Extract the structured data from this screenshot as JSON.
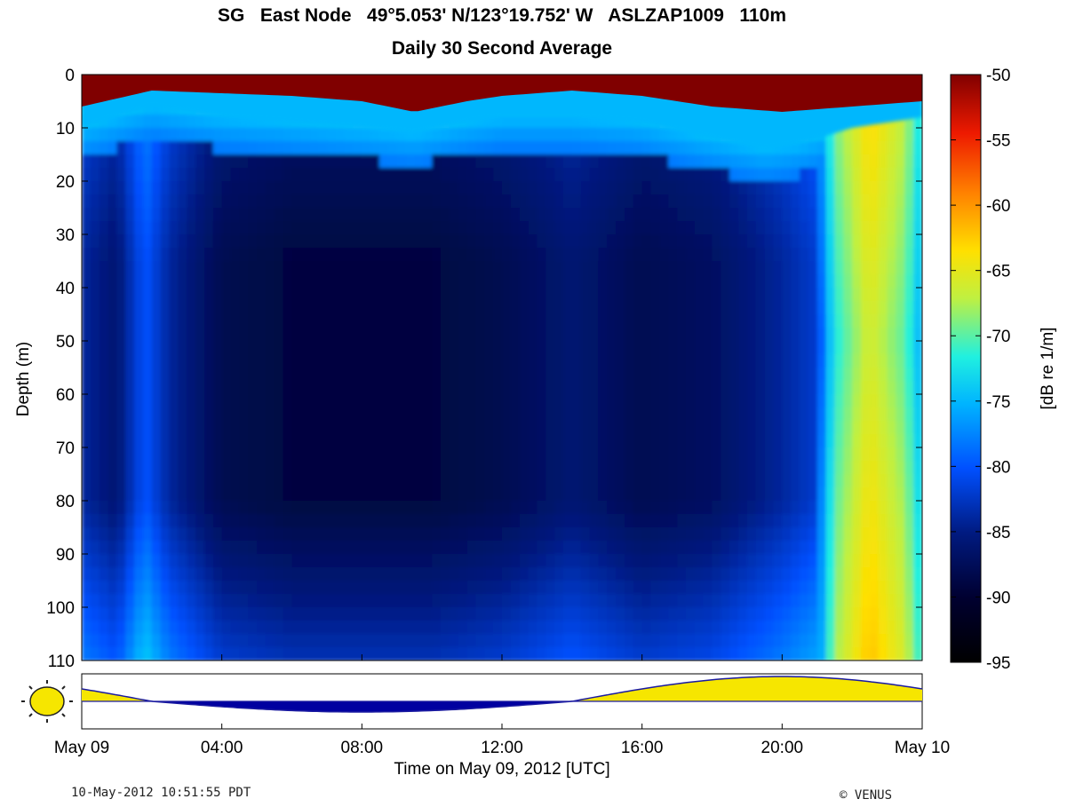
{
  "chart_data": {
    "type": "heatmap",
    "title_line1": "SG   East Node   49°5.053' N/123°19.752' W   ASLZAP1009   110m",
    "title_line2": "Daily 30 Second Average",
    "ylabel": "Depth (m)",
    "xlabel": "Time on May 09, 2012 [UTC]",
    "ylim": [
      0,
      110
    ],
    "y_inverted": true,
    "y_ticks": [
      "0",
      "10",
      "20",
      "30",
      "40",
      "50",
      "60",
      "70",
      "80",
      "90",
      "100",
      "110"
    ],
    "x_range_hours": [
      0,
      24
    ],
    "x_ticks": [
      {
        "hour": 0,
        "label": "May 09"
      },
      {
        "hour": 4,
        "label": "04:00"
      },
      {
        "hour": 8,
        "label": "08:00"
      },
      {
        "hour": 12,
        "label": "12:00"
      },
      {
        "hour": 16,
        "label": "16:00"
      },
      {
        "hour": 20,
        "label": "20:00"
      },
      {
        "hour": 24,
        "label": "May 10"
      }
    ],
    "colorbar": {
      "label": "[dB re 1/m]",
      "range": [
        -95,
        -50
      ],
      "ticks": [
        "-50",
        "-55",
        "-60",
        "-65",
        "-70",
        "-75",
        "-80",
        "-85",
        "-90",
        "-95"
      ],
      "colormap": "jet-dark"
    },
    "surface_layer": {
      "value_db": -50,
      "depth_by_hour": [
        [
          0,
          6
        ],
        [
          2,
          3
        ],
        [
          4,
          3.5
        ],
        [
          6,
          4
        ],
        [
          8,
          5
        ],
        [
          9.5,
          7
        ],
        [
          11,
          5
        ],
        [
          12,
          4
        ],
        [
          14,
          3
        ],
        [
          16,
          4
        ],
        [
          18,
          6
        ],
        [
          20,
          7
        ],
        [
          22,
          6
        ],
        [
          24,
          5
        ]
      ]
    },
    "surface_transition": {
      "value_db": -75,
      "depth_by_hour": [
        [
          0,
          10
        ],
        [
          2,
          6
        ],
        [
          4,
          8
        ],
        [
          6,
          9
        ],
        [
          8,
          10
        ],
        [
          9.5,
          11
        ],
        [
          11,
          9
        ],
        [
          12,
          8
        ],
        [
          14,
          8
        ],
        [
          16,
          9
        ],
        [
          18,
          12
        ],
        [
          19.5,
          14
        ],
        [
          20.5,
          13
        ],
        [
          21,
          12
        ],
        [
          22,
          10
        ],
        [
          24,
          8
        ]
      ]
    },
    "water_column_profile": [
      {
        "hour": 0.0,
        "mean_db": -84
      },
      {
        "hour": 1.0,
        "mean_db": -86
      },
      {
        "hour": 1.8,
        "mean_db": -80
      },
      {
        "hour": 2.5,
        "mean_db": -84
      },
      {
        "hour": 4.0,
        "mean_db": -88
      },
      {
        "hour": 6.0,
        "mean_db": -89
      },
      {
        "hour": 8.0,
        "mean_db": -89
      },
      {
        "hour": 10.0,
        "mean_db": -89
      },
      {
        "hour": 12.0,
        "mean_db": -88
      },
      {
        "hour": 14.0,
        "mean_db": -86
      },
      {
        "hour": 16.0,
        "mean_db": -88
      },
      {
        "hour": 18.0,
        "mean_db": -87
      },
      {
        "hour": 20.0,
        "mean_db": -84
      },
      {
        "hour": 21.0,
        "mean_db": -82
      },
      {
        "hour": 21.5,
        "mean_db": -72
      },
      {
        "hour": 22.5,
        "mean_db": -66
      },
      {
        "hour": 23.5,
        "mean_db": -70
      },
      {
        "hour": 24.0,
        "mean_db": -76
      }
    ],
    "sun_elevation": {
      "daylight_hours": [
        [
          0,
          3.7
        ],
        [
          12.9,
          24
        ]
      ],
      "night_hours": [
        3.7,
        12.9
      ],
      "peak_day_hour": 20.0,
      "peak_night_hour": 7.9
    }
  },
  "footer": {
    "timestamp": "10-May-2012 10:51:55 PDT",
    "copyright": "© VENUS"
  },
  "colors": {
    "sun": "#f6e600",
    "night": "#0000a0",
    "curve": "#1a1aa0"
  }
}
